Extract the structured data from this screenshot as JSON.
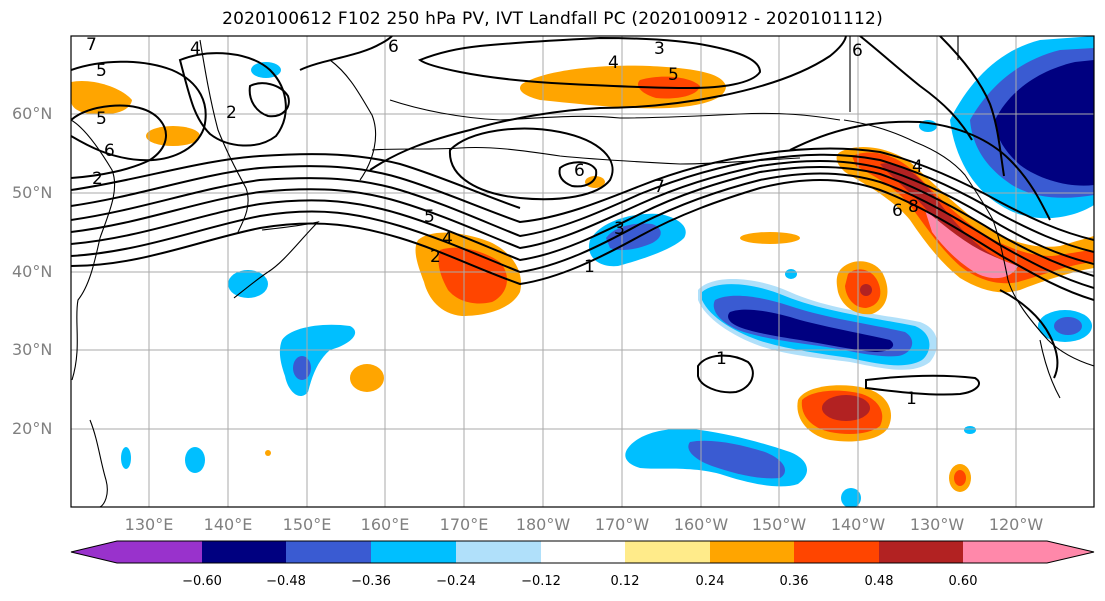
{
  "title": "2020100612 F102 250 hPa PV, IVT Landfall PC (2020100912 - 2020101112)",
  "lat_labels": [
    "60°N",
    "50°N",
    "40°N",
    "30°N",
    "20°N"
  ],
  "lon_labels": [
    "130°E",
    "140°E",
    "150°E",
    "160°E",
    "170°E",
    "180°W",
    "170°W",
    "160°W",
    "150°W",
    "140°W",
    "130°W",
    "120°W"
  ],
  "colorbar": {
    "colors": [
      "#9932cc",
      "#000080",
      "#3a5bd2",
      "#00bfff",
      "#b0e0fa",
      "#ffffff",
      "#ffeb8a",
      "#ffa500",
      "#ff4500",
      "#b22222",
      "#ff88aa"
    ],
    "ticks": [
      "−0.60",
      "−0.48",
      "−0.36",
      "−0.24",
      "−0.12",
      "0.12",
      "0.24",
      "0.36",
      "0.48",
      "0.60"
    ]
  },
  "contour_labels": [
    "1",
    "2",
    "3",
    "4",
    "5",
    "6",
    "7",
    "8"
  ],
  "contour_label_instances": [
    "7",
    "5",
    "5",
    "6",
    "2",
    "2",
    "4",
    "6",
    "3",
    "4",
    "5",
    "5",
    "4",
    "2",
    "1",
    "7",
    "6",
    "3",
    "1",
    "1",
    "4",
    "6",
    "8",
    "6"
  ]
}
